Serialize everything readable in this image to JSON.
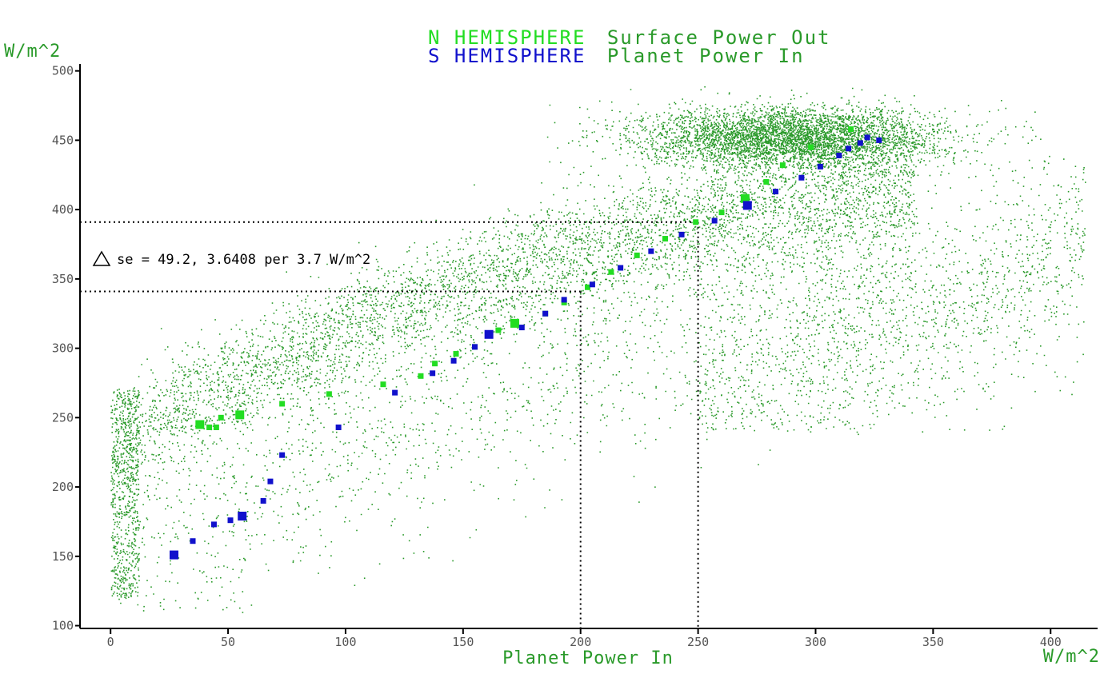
{
  "chart_data": {
    "type": "scatter",
    "title_line1": {
      "prefix": "N HEMISPHERE",
      "rest": "Surface Power Out"
    },
    "title_line2": {
      "prefix": "S HEMISPHERE",
      "rest": "Planet Power In"
    },
    "xlabel": "Planet Power In",
    "xunit": "W/m^2",
    "yunit": "W/m^2",
    "xlim": [
      -13,
      420
    ],
    "ylim": [
      98,
      505
    ],
    "xticks": [
      "0",
      "50",
      "100",
      "150",
      "200",
      "250",
      "300",
      "350",
      "400"
    ],
    "yticks": [
      "100",
      "150",
      "200",
      "250",
      "300",
      "350",
      "400",
      "450",
      "500"
    ],
    "grid": false,
    "legend": "title",
    "colors": {
      "north": "#22dd22",
      "south": "#1111cc",
      "background_points": "#2a9a2a",
      "axis": "#000000",
      "title_prefix_n": "#22dd22",
      "title_prefix_s": "#1111cc",
      "title_rest": "#2a9a2a"
    },
    "annotation": {
      "text": "se = 49.2, 3.6408 per 3.7 W/m^2",
      "symbol": "triangle"
    },
    "guides": [
      {
        "x": 200,
        "y": 341
      },
      {
        "x": 250,
        "y": 391
      }
    ],
    "series": [
      {
        "id": "north",
        "points": [
          [
            38,
            245
          ],
          [
            42,
            243
          ],
          [
            45,
            243
          ],
          [
            47,
            250
          ],
          [
            55,
            252
          ],
          [
            73,
            260
          ],
          [
            93,
            267
          ],
          [
            116,
            274
          ],
          [
            132,
            280
          ],
          [
            138,
            289
          ],
          [
            147,
            296
          ],
          [
            155,
            301
          ],
          [
            165,
            313
          ],
          [
            172,
            318
          ],
          [
            185,
            325
          ],
          [
            193,
            333
          ],
          [
            203,
            344
          ],
          [
            213,
            355
          ],
          [
            224,
            367
          ],
          [
            236,
            379
          ],
          [
            249,
            391
          ],
          [
            260,
            398
          ],
          [
            270,
            408
          ],
          [
            279,
            420
          ],
          [
            286,
            432
          ],
          [
            298,
            445
          ],
          [
            315,
            458
          ]
        ]
      },
      {
        "id": "south",
        "points": [
          [
            27,
            151
          ],
          [
            35,
            161
          ],
          [
            44,
            173
          ],
          [
            51,
            176
          ],
          [
            56,
            179
          ],
          [
            65,
            190
          ],
          [
            68,
            204
          ],
          [
            73,
            223
          ],
          [
            97,
            243
          ],
          [
            121,
            268
          ],
          [
            137,
            282
          ],
          [
            146,
            291
          ],
          [
            155,
            301
          ],
          [
            161,
            310
          ],
          [
            175,
            315
          ],
          [
            185,
            325
          ],
          [
            193,
            335
          ],
          [
            205,
            346
          ],
          [
            217,
            358
          ],
          [
            230,
            370
          ],
          [
            243,
            382
          ],
          [
            257,
            392
          ],
          [
            271,
            403
          ],
          [
            283,
            413
          ],
          [
            294,
            423
          ],
          [
            302,
            431
          ],
          [
            310,
            439
          ],
          [
            314,
            444
          ],
          [
            319,
            448
          ],
          [
            322,
            452
          ],
          [
            327,
            450
          ]
        ]
      }
    ]
  }
}
